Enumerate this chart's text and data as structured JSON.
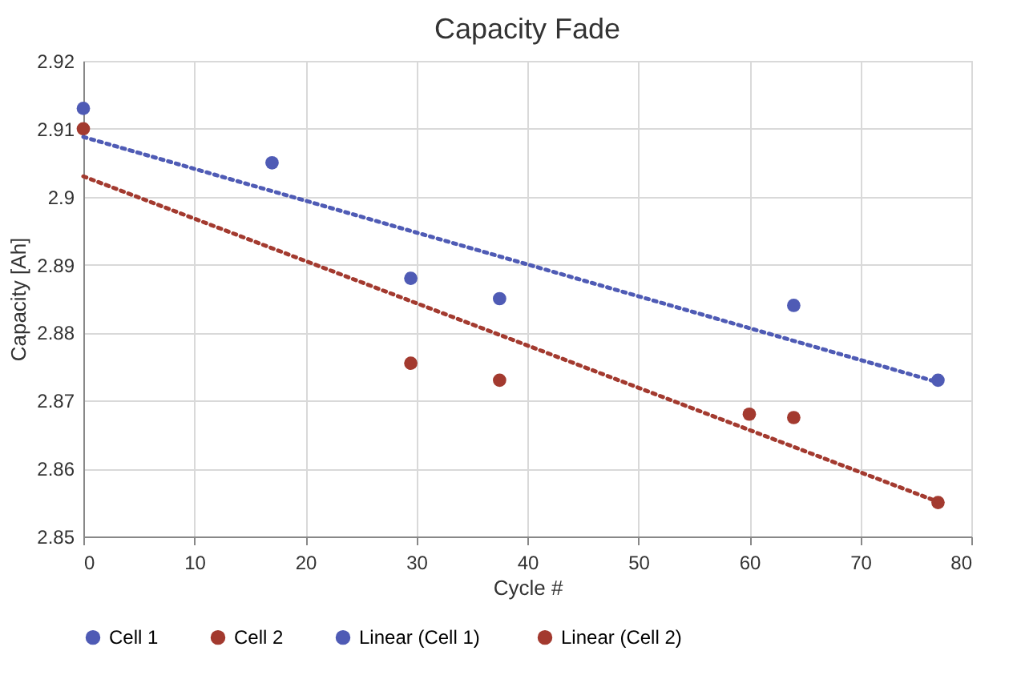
{
  "chart_data": {
    "type": "scatter",
    "title": "Capacity Fade",
    "xlabel": "Cycle #",
    "ylabel": "Capacity [Ah]",
    "xlim": [
      0,
      80
    ],
    "xticks": [
      0,
      10,
      20,
      30,
      40,
      50,
      60,
      70,
      80
    ],
    "ylim": [
      2.85,
      2.92
    ],
    "yticks": [
      2.85,
      2.86,
      2.87,
      2.88,
      2.89,
      2.9,
      2.91,
      2.92
    ],
    "grid": true,
    "legend": "bottom",
    "marker": "circle",
    "series": [
      {
        "name": "Cell 1",
        "color": "#4f5bb5",
        "x": [
          0,
          17,
          29.5,
          37.5,
          64,
          77
        ],
        "values": [
          2.913,
          2.905,
          2.888,
          2.885,
          2.884,
          2.873
        ]
      },
      {
        "name": "Cell 2",
        "color": "#a33a2f",
        "x": [
          0,
          29.5,
          37.5,
          60,
          64,
          77
        ],
        "values": [
          2.91,
          2.8755,
          2.873,
          2.868,
          2.8675,
          2.855
        ]
      },
      {
        "name": "Linear  (Cell 1)",
        "type": "line",
        "line_style": "dotted",
        "marker": "none",
        "color": "#4f5bb5",
        "x": [
          0,
          77
        ],
        "values": [
          2.9088,
          2.8727
        ]
      },
      {
        "name": "Linear  (Cell 2)",
        "type": "line",
        "line_style": "dotted",
        "marker": "none",
        "color": "#a33a2f",
        "x": [
          0,
          77
        ],
        "values": [
          2.903,
          2.8551
        ]
      }
    ]
  }
}
